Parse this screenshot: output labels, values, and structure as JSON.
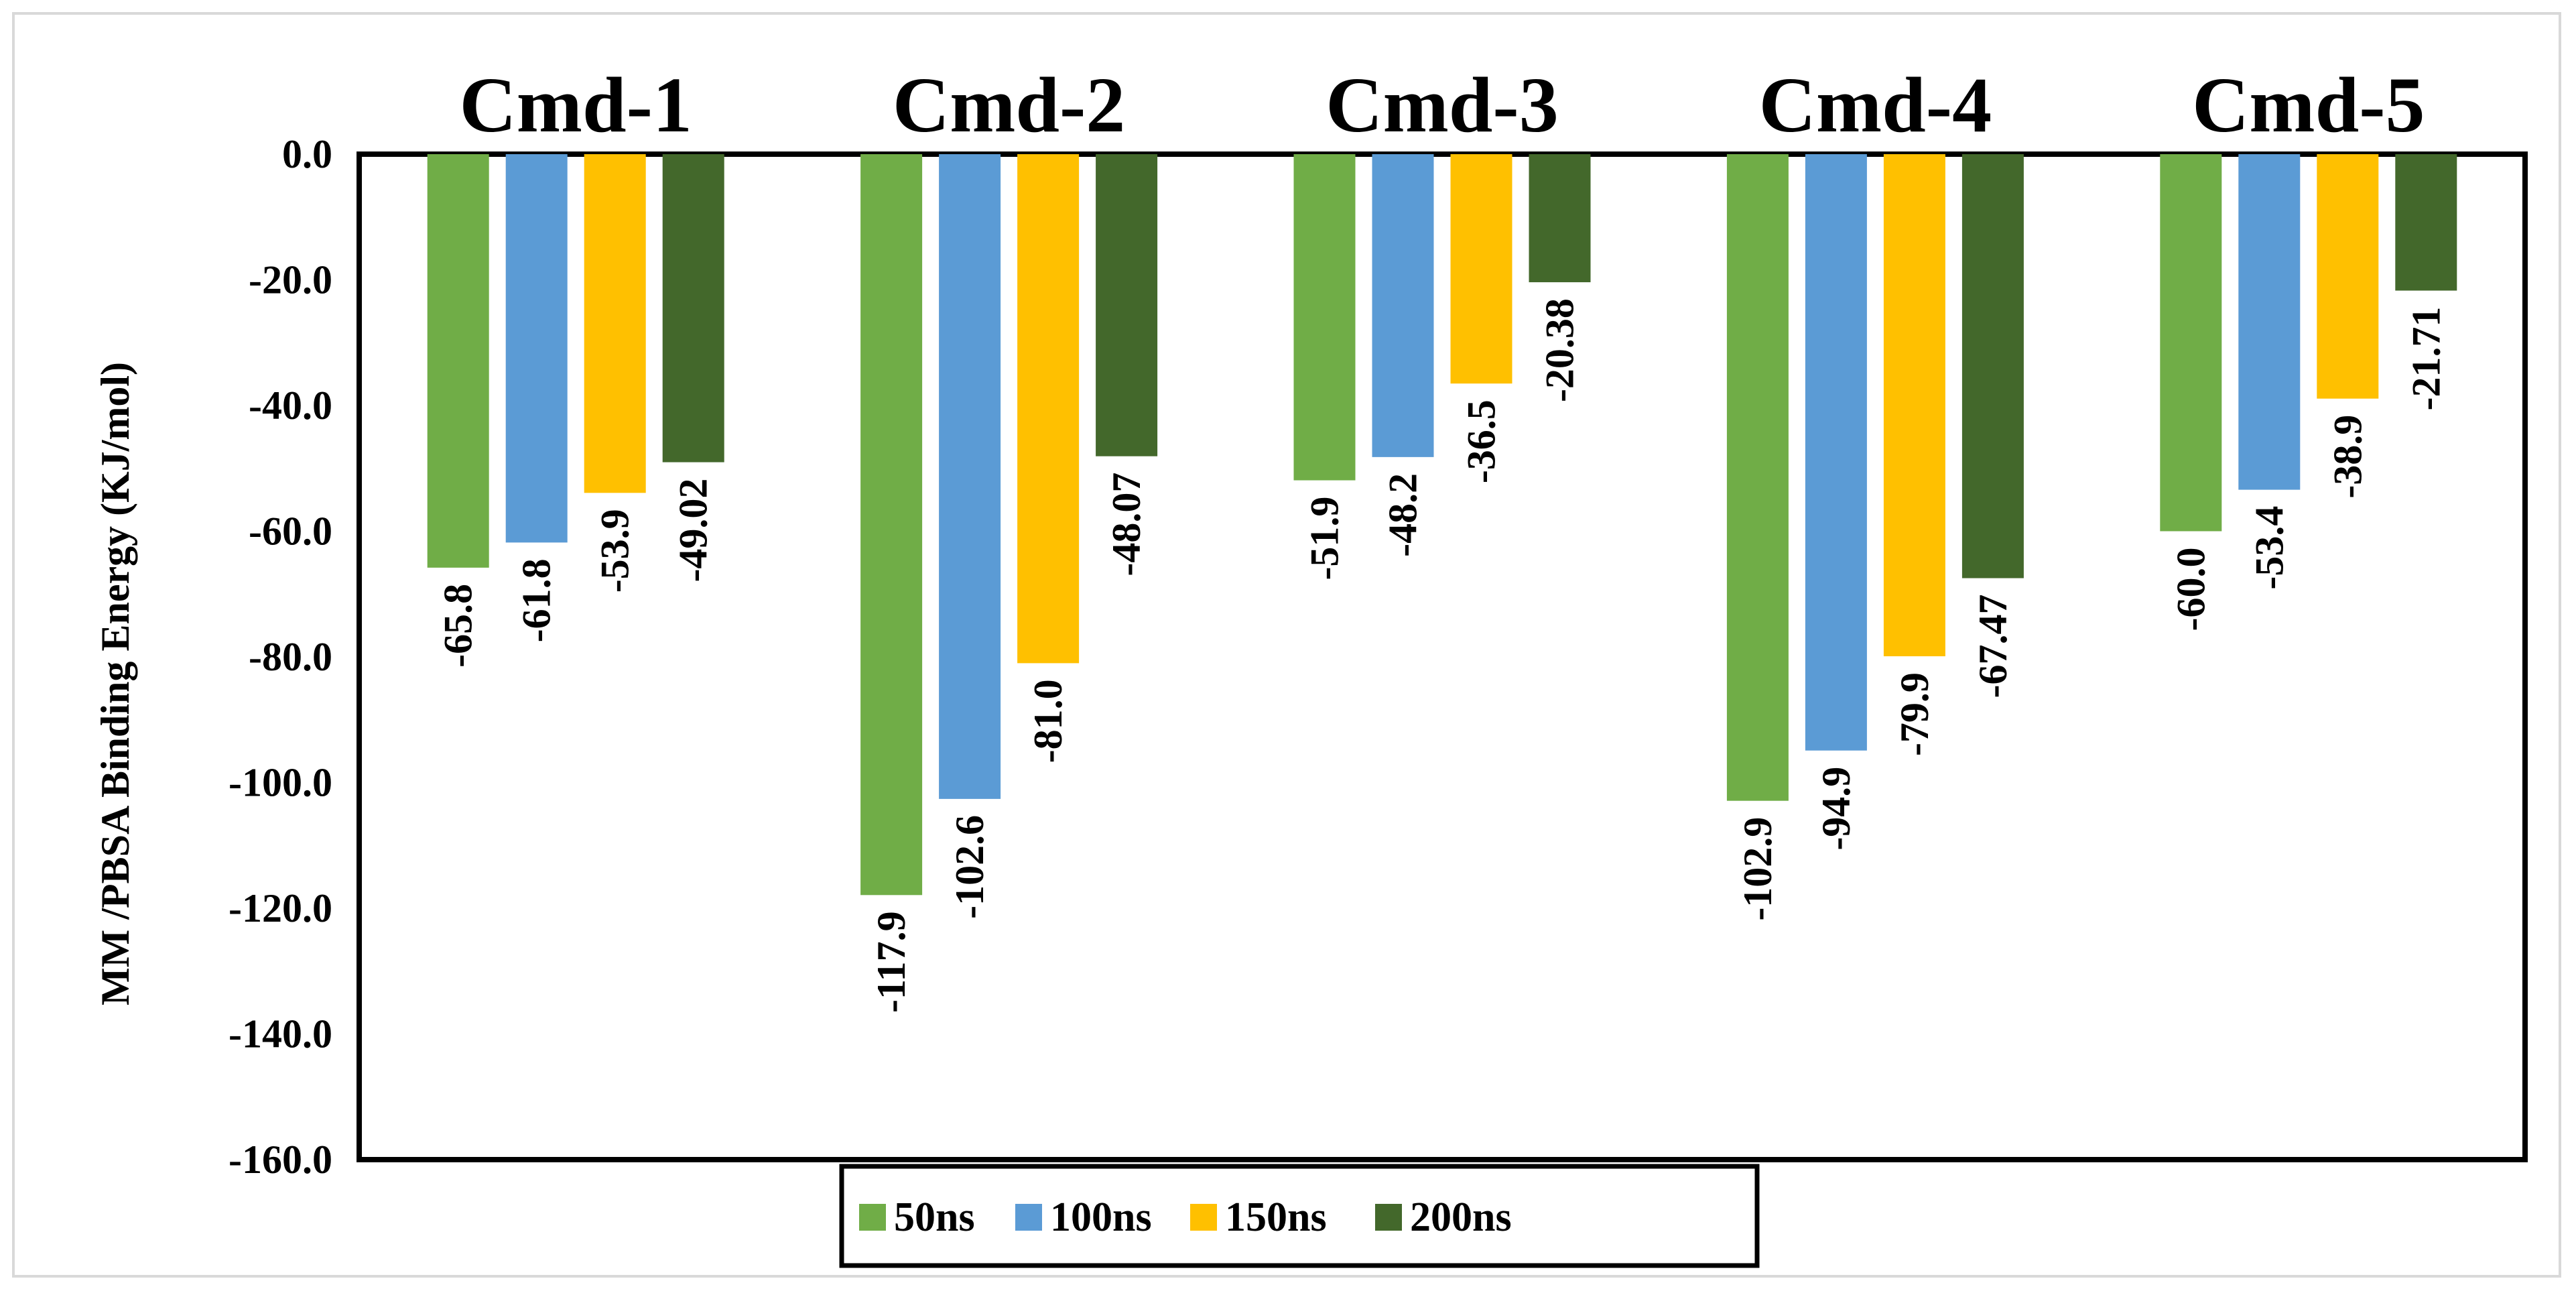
{
  "chart_data": {
    "type": "bar",
    "title": "",
    "xlabel": "",
    "ylabel": "MM /PBSA Binding Energy (KJ/mol)",
    "ylim": [
      -160,
      0
    ],
    "yticks": [
      0,
      -20,
      -40,
      -60,
      -80,
      -100,
      -120,
      -140,
      -160
    ],
    "ytick_labels": [
      "0.0",
      "-20.0",
      "-40.0",
      "-60.0",
      "-80.0",
      "-100.0",
      "-120.0",
      "-140.0",
      "-160.0"
    ],
    "categories": [
      "Cmd-1",
      "Cmd-2",
      "Cmd-3",
      "Cmd-4",
      "Cmd-5"
    ],
    "series": [
      {
        "name": "50ns",
        "color": "#70AD47",
        "values": [
          -65.8,
          -117.9,
          -51.9,
          -102.9,
          -60.0
        ],
        "labels": [
          "-65.8",
          "-117.9",
          "-51.9",
          "-102.9",
          "-60.0"
        ]
      },
      {
        "name": "100ns",
        "color": "#5B9BD5",
        "values": [
          -61.8,
          -102.6,
          -48.2,
          -94.9,
          -53.4
        ],
        "labels": [
          "-61.8",
          "-102.6",
          "-48.2",
          "-94.9",
          "-53.4"
        ]
      },
      {
        "name": "150ns",
        "color": "#FFC000",
        "values": [
          -53.9,
          -81.0,
          -36.5,
          -79.9,
          -38.9
        ],
        "labels": [
          "-53.9",
          "-81.0",
          "-36.5",
          "-79.9",
          "-38.9"
        ]
      },
      {
        "name": "200ns",
        "color": "#43682B",
        "values": [
          -49.02,
          -48.07,
          -20.38,
          -67.47,
          -21.71
        ],
        "labels": [
          "-49.02",
          "-48.07",
          "-20.38",
          "-67.47",
          "-21.71"
        ]
      }
    ],
    "grid": false,
    "legend_position": "bottom-center"
  }
}
